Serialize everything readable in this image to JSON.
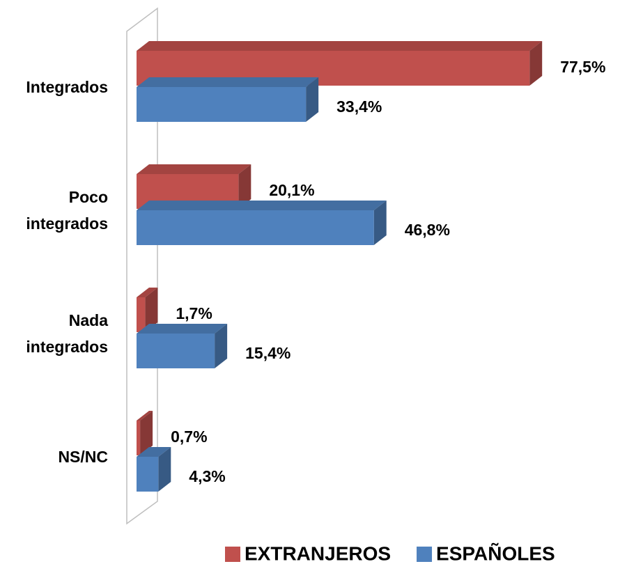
{
  "chart_data": {
    "type": "bar",
    "orientation": "horizontal",
    "categories": [
      "Integrados",
      "Poco integrados",
      "Nada integrados",
      "NS/NC"
    ],
    "series": [
      {
        "name": "EXTRANJEROS",
        "color": "#c0504d",
        "values": [
          77.5,
          20.1,
          1.7,
          0.7
        ],
        "value_labels": [
          "77,5%",
          "20,1%",
          "1,7%",
          "0,7%"
        ]
      },
      {
        "name": "ESPAÑOLES",
        "color": "#4f81bd",
        "values": [
          33.4,
          46.8,
          15.4,
          4.3
        ],
        "value_labels": [
          "33,4%",
          "46,8%",
          "15,4%",
          "4,3%"
        ]
      }
    ]
  }
}
